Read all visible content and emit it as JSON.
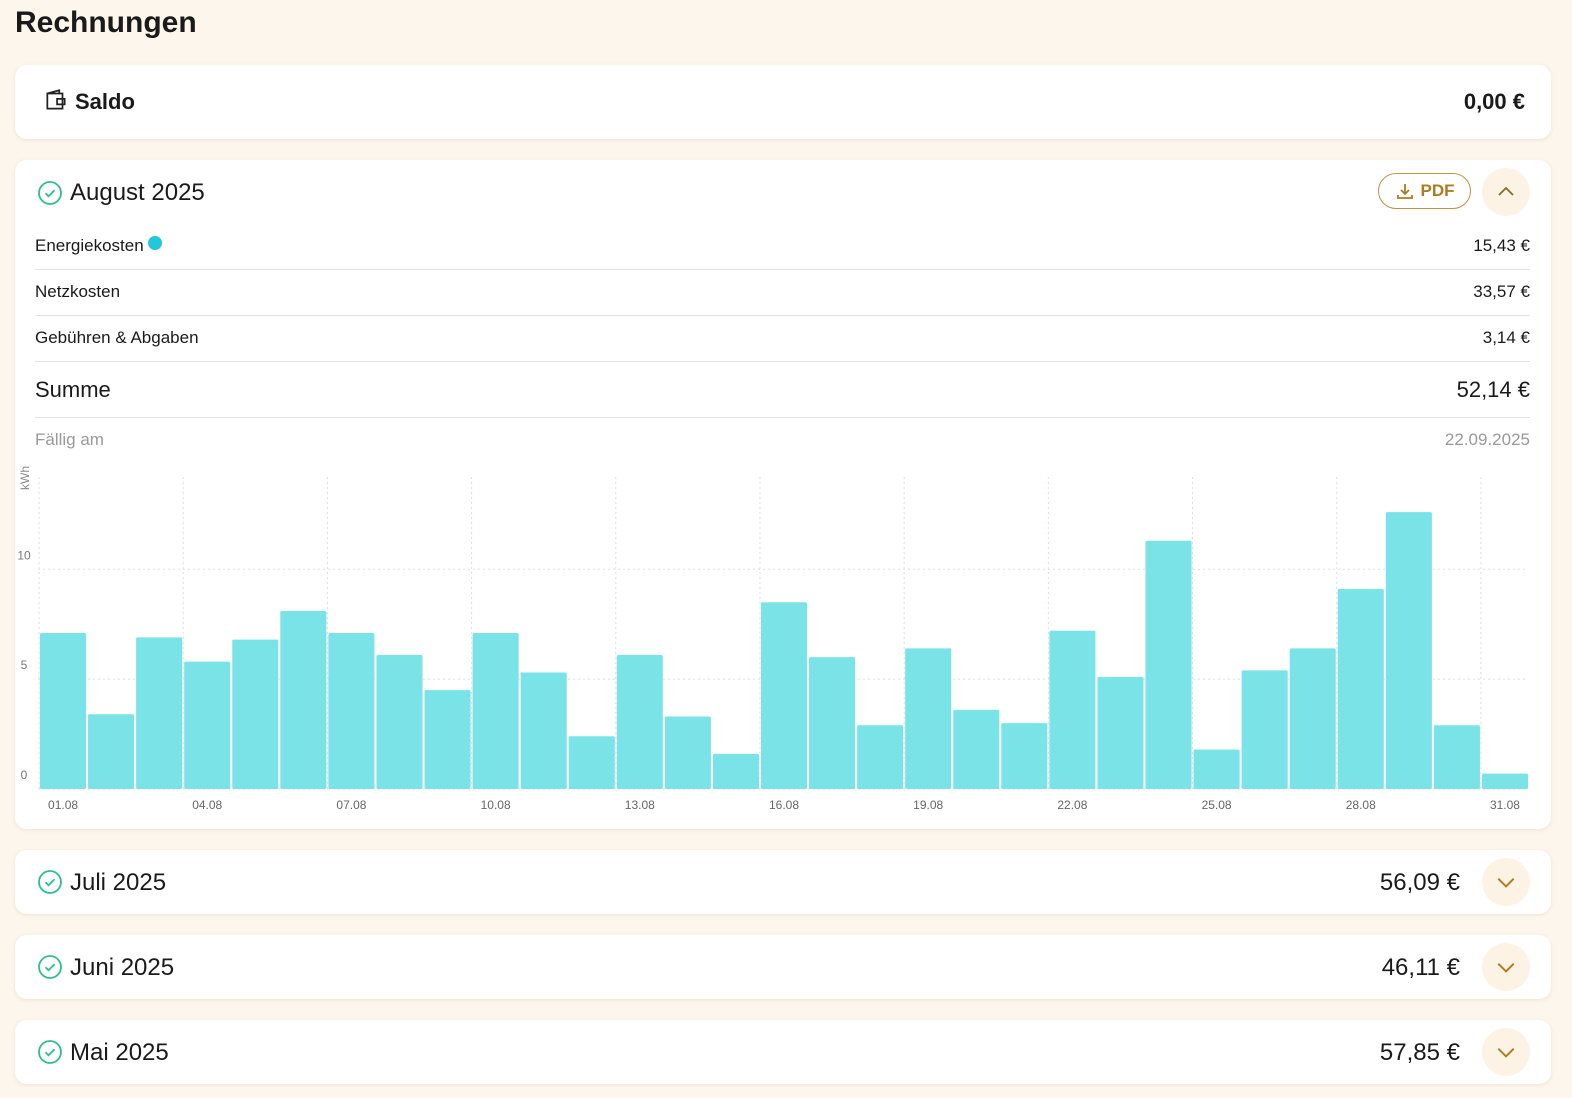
{
  "header": {
    "title": "Rechnungen"
  },
  "saldo": {
    "label": "Saldo",
    "amount": "0,00 €"
  },
  "current": {
    "month": "August 2025",
    "pdf": "PDF",
    "rows": [
      {
        "label": "Energiekosten",
        "amount": "15,43 €"
      },
      {
        "label": "Netzkosten",
        "amount": "33,57 €"
      },
      {
        "label": "Gebühren & Abgaben",
        "amount": "3,14 €"
      }
    ],
    "total": {
      "label": "Summe",
      "amount": "52,14 €"
    },
    "due": {
      "label": "Fällig am",
      "date": "22.09.2025"
    }
  },
  "chart_data": {
    "type": "bar",
    "y_label": "kWh",
    "categories": [
      "01.08",
      null,
      null,
      "04.08",
      null,
      null,
      "07.08",
      null,
      null,
      "10.08",
      null,
      null,
      "13.08",
      null,
      null,
      "16.08",
      null,
      null,
      "19.08",
      null,
      null,
      "22.08",
      null,
      null,
      "25.08",
      null,
      null,
      "28.08",
      null,
      null,
      "31.08"
    ],
    "values": [
      7.1,
      3.4,
      6.9,
      5.8,
      6.8,
      8.1,
      7.1,
      6.1,
      4.5,
      7.1,
      5.3,
      2.4,
      6.1,
      3.3,
      1.6,
      8.5,
      6.0,
      2.9,
      6.4,
      3.6,
      3.0,
      7.2,
      5.1,
      11.3,
      1.8,
      5.4,
      6.4,
      9.1,
      12.6,
      2.9,
      0.7
    ],
    "color": "#79e3e8",
    "ylim": [
      0,
      14.2
    ],
    "yticks": [
      0,
      5,
      10
    ],
    "grid": true
  },
  "invoices": [
    {
      "month": "Juli 2025",
      "amount": "56,09 €"
    },
    {
      "month": "Juni 2025",
      "amount": "46,11 €"
    },
    {
      "month": "Mai 2025",
      "amount": "57,85 €"
    }
  ]
}
